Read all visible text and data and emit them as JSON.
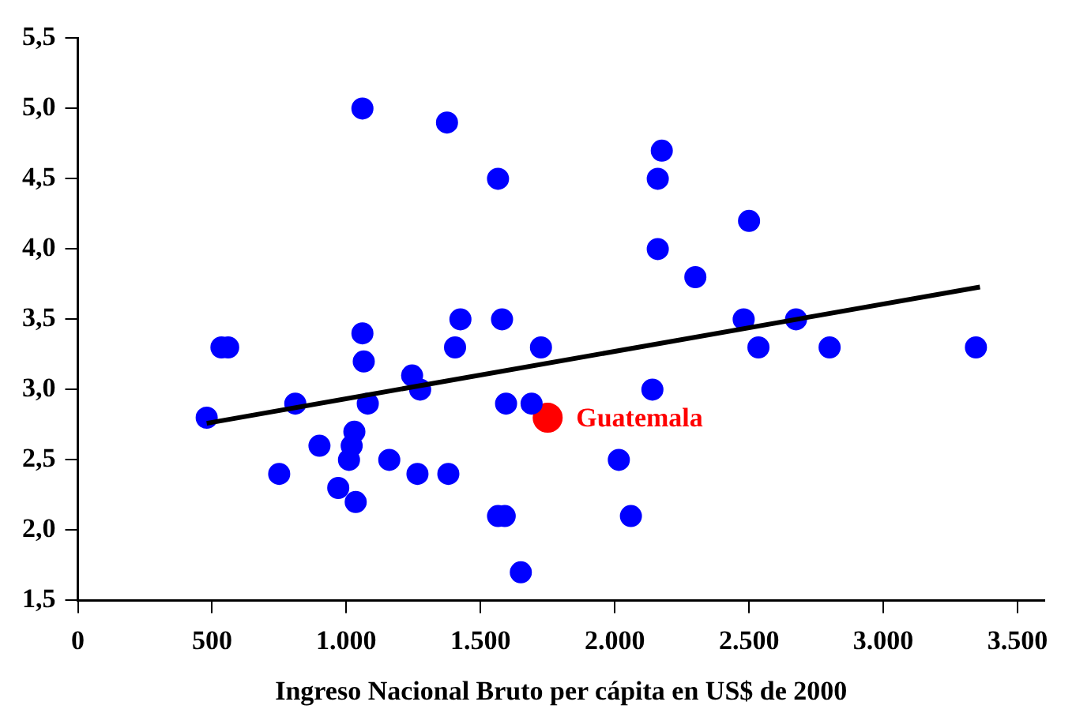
{
  "chart_data": {
    "type": "scatter",
    "xlabel": "Ingreso Nacional Bruto per cápita en US$ de 2000",
    "xlim": [
      0,
      3600
    ],
    "xticks": [
      {
        "value": 0,
        "label": "0"
      },
      {
        "value": 500,
        "label": "500"
      },
      {
        "value": 1000,
        "label": "1.000"
      },
      {
        "value": 1500,
        "label": "1.500"
      },
      {
        "value": 2000,
        "label": "2.000"
      },
      {
        "value": 2500,
        "label": "2.500"
      },
      {
        "value": 3000,
        "label": "3.000"
      },
      {
        "value": 3500,
        "label": "3.500"
      }
    ],
    "ylim": [
      1.5,
      5.5
    ],
    "yticks": [
      {
        "value": 1.5,
        "label": "1,5"
      },
      {
        "value": 2,
        "label": "2,0"
      },
      {
        "value": 2.5,
        "label": "2,5"
      },
      {
        "value": 3,
        "label": "3,0"
      },
      {
        "value": 3.5,
        "label": "3,5"
      },
      {
        "value": 4,
        "label": "4,0"
      },
      {
        "value": 4.5,
        "label": "4,5"
      },
      {
        "value": 5,
        "label": "5,0"
      },
      {
        "value": 5.5,
        "label": "5,5"
      }
    ],
    "grid": false,
    "legend": false,
    "marker": "circle",
    "series": [
      {
        "color": "#0000ff",
        "x": [
          480,
          535,
          560,
          750,
          810,
          900,
          970,
          1010,
          1020,
          1030,
          1035,
          1060,
          1065,
          1080,
          1060,
          1160,
          1245,
          1265,
          1275,
          1380,
          1375,
          1405,
          1425,
          1565,
          1565,
          1590,
          1580,
          1595,
          1650,
          1690,
          1725,
          2140,
          2015,
          2060,
          2480,
          2535,
          2675,
          2800,
          3345,
          2175,
          2160,
          2500,
          2160,
          2300
        ],
        "values": [
          2.8,
          3.3,
          3.3,
          2.4,
          2.9,
          2.6,
          2.3,
          2.5,
          2.6,
          2.7,
          2.2,
          3.4,
          3.2,
          2.9,
          5.0,
          2.5,
          3.1,
          2.4,
          3.0,
          2.4,
          4.9,
          3.3,
          3.5,
          4.5,
          2.1,
          2.1,
          3.5,
          2.9,
          1.7,
          2.9,
          3.3,
          3.0,
          2.5,
          2.1,
          3.5,
          3.3,
          3.5,
          3.3,
          3.3,
          4.7,
          4.5,
          4.2,
          4.0,
          3.8
        ]
      },
      {
        "name": "Guatemala",
        "color": "#ff0000",
        "x": [
          1750
        ],
        "values": [
          2.8
        ]
      },
      {
        "type": "line",
        "color": "#000000",
        "marker": "none",
        "x": [
          480,
          3360
        ],
        "values": [
          2.76,
          3.73
        ]
      }
    ]
  }
}
